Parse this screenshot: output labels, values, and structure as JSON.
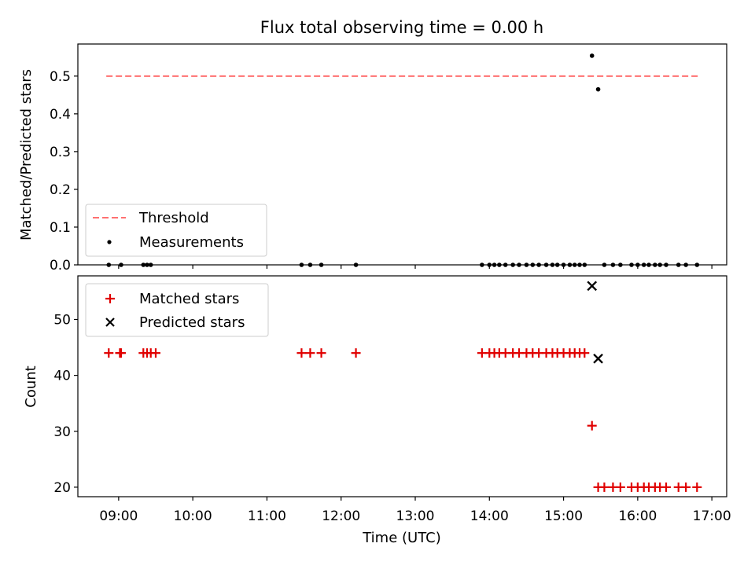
{
  "title": "Flux total observing time = 0.00 h",
  "colors": {
    "threshold": "#ff7070",
    "matched": "#e00000",
    "predicted": "#000000",
    "measurement": "#000000"
  },
  "chart_data": [
    {
      "type": "scatter",
      "ylabel": "Matched/Predicted stars",
      "ylim": [
        0,
        0.585
      ],
      "yticks": [
        0,
        0.1,
        0.2,
        0.3,
        0.4,
        0.5
      ],
      "ytick_labels": [
        "0.0",
        "0.1",
        "0.2",
        "0.3",
        "0.4",
        "0.5"
      ],
      "legend": {
        "position": "lower-left",
        "entries": [
          "Threshold",
          "Measurements"
        ]
      },
      "threshold": {
        "name": "Threshold",
        "value": 0.5,
        "x_range": [
          "08:50",
          "16:50"
        ]
      },
      "series": [
        {
          "name": "Measurements",
          "x": [
            "08:52",
            "09:02",
            "09:20",
            "09:23",
            "09:26",
            "11:28",
            "11:35",
            "11:44",
            "12:12",
            "13:54",
            "14:00",
            "14:04",
            "14:08",
            "14:13",
            "14:19",
            "14:24",
            "14:30",
            "14:35",
            "14:40",
            "14:46",
            "14:51",
            "14:55",
            "15:00",
            "15:05",
            "15:09",
            "15:13",
            "15:17",
            "15:23",
            "15:28",
            "15:33",
            "15:40",
            "15:46",
            "15:55",
            "16:00",
            "16:05",
            "16:09",
            "16:14",
            "16:18",
            "16:23",
            "16:33",
            "16:39",
            "16:48"
          ],
          "y": [
            0,
            0,
            0,
            0,
            0,
            0,
            0,
            0,
            0,
            0,
            0,
            0,
            0,
            0,
            0,
            0,
            0,
            0,
            0,
            0,
            0,
            0,
            0,
            0,
            0,
            0,
            0,
            0.554,
            0.465,
            0,
            0,
            0,
            0,
            0,
            0,
            0,
            0,
            0,
            0,
            0,
            0,
            0
          ]
        }
      ]
    },
    {
      "type": "scatter",
      "xlabel": "Time (UTC)",
      "ylabel": "Count",
      "ylim": [
        18.3,
        57.8
      ],
      "yticks": [
        20,
        30,
        40,
        50
      ],
      "ytick_labels": [
        "20",
        "30",
        "40",
        "50"
      ],
      "xlim": [
        "08:27",
        "17:12"
      ],
      "xticks": [
        "09:00",
        "10:00",
        "11:00",
        "12:00",
        "13:00",
        "14:00",
        "15:00",
        "16:00",
        "17:00"
      ],
      "xtick_labels": [
        "09:00",
        "10:00",
        "11:00",
        "12:00",
        "13:00",
        "14:00",
        "15:00",
        "16:00",
        "17:00"
      ],
      "legend": {
        "position": "upper-left",
        "entries": [
          "Matched stars",
          "Predicted stars"
        ]
      },
      "series": [
        {
          "name": "Matched stars",
          "marker": "plus",
          "x": [
            "08:52",
            "09:01",
            "09:02",
            "09:20",
            "09:23",
            "09:26",
            "09:30",
            "11:28",
            "11:35",
            "11:44",
            "12:12",
            "13:54",
            "14:00",
            "14:04",
            "14:08",
            "14:13",
            "14:19",
            "14:24",
            "14:30",
            "14:35",
            "14:40",
            "14:46",
            "14:51",
            "14:55",
            "15:00",
            "15:05",
            "15:09",
            "15:13",
            "15:17",
            "15:23",
            "15:28",
            "15:33",
            "15:40",
            "15:46",
            "15:55",
            "16:00",
            "16:05",
            "16:09",
            "16:14",
            "16:18",
            "16:23",
            "16:33",
            "16:39",
            "16:48"
          ],
          "y": [
            44,
            44,
            44,
            44,
            44,
            44,
            44,
            44,
            44,
            44,
            44,
            44,
            44,
            44,
            44,
            44,
            44,
            44,
            44,
            44,
            44,
            44,
            44,
            44,
            44,
            44,
            44,
            44,
            44,
            31,
            20,
            20,
            20,
            20,
            20,
            20,
            20,
            20,
            20,
            20,
            20,
            20,
            20,
            20
          ]
        },
        {
          "name": "Predicted stars",
          "marker": "x",
          "x": [
            "15:23",
            "15:28"
          ],
          "y": [
            56,
            43
          ]
        }
      ]
    }
  ]
}
